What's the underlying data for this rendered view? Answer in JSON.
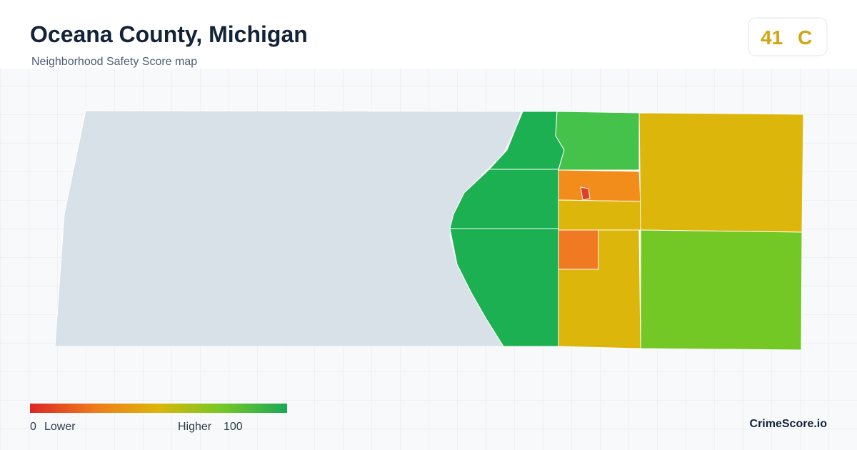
{
  "header": {
    "title": "Oceana County, Michigan",
    "subtitle": "Neighborhood Safety Score map"
  },
  "score": {
    "value": 41,
    "grade": "C"
  },
  "legend": {
    "min": 0,
    "min_label": "Lower",
    "max_label": "Higher",
    "max": 100
  },
  "brand": "CrimeScore.io"
}
